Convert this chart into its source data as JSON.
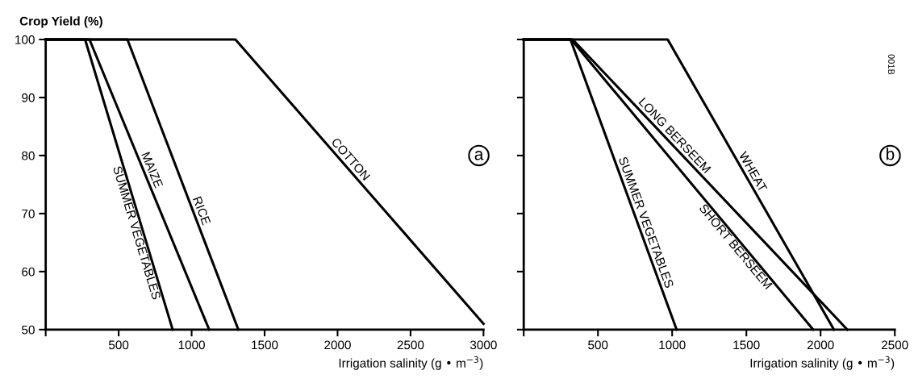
{
  "chart_data": [
    {
      "type": "line",
      "ylabel": "Crop Yield (%)",
      "xlabel": "Irrigation salinity (g • m$^{−3}$)",
      "xlim": [
        0,
        3000
      ],
      "ylim": [
        50,
        100
      ],
      "xticks": [
        {
          "value": 0,
          "label": null
        },
        500,
        1000,
        1500,
        2000,
        2500,
        3000
      ],
      "yticks": [
        50,
        60,
        70,
        80,
        90,
        100
      ],
      "grid": false,
      "marker": "none",
      "line_style": "solid",
      "series": [
        {
          "name": "SUMMER VEGETABLES",
          "color": "#000000",
          "x": [
            0,
            270,
            870
          ],
          "values": [
            100,
            100,
            50
          ]
        },
        {
          "name": "MAIZE",
          "color": "#000000",
          "x": [
            0,
            300,
            1120
          ],
          "values": [
            100,
            100,
            50
          ]
        },
        {
          "name": "RICE",
          "color": "#000000",
          "x": [
            0,
            560,
            1320
          ],
          "values": [
            100,
            100,
            50
          ]
        },
        {
          "name": "COTTON",
          "color": "#000000",
          "x": [
            0,
            1300,
            3000
          ],
          "values": [
            100,
            100,
            51
          ]
        }
      ],
      "annotations": [
        "a"
      ]
    },
    {
      "type": "line",
      "xlabel": "Irrigation salinity (g • m$^{−3}$)",
      "xlim": [
        0,
        2500
      ],
      "ylim": [
        50,
        100
      ],
      "xticks": [
        {
          "value": 0,
          "label": null
        },
        500,
        1000,
        1500,
        2000,
        2500
      ],
      "yticks": [
        50,
        60,
        70,
        80,
        90,
        100
      ],
      "tick_labels": "x",
      "grid": false,
      "marker": "none",
      "line_style": "solid",
      "series": [
        {
          "name": "SUMMER VEGETABLES",
          "color": "#000000",
          "x": [
            0,
            315,
            1030
          ],
          "values": [
            100,
            100,
            50
          ]
        },
        {
          "name": "SHORT BERSEEM",
          "color": "#000000",
          "x": [
            0,
            320,
            1950
          ],
          "values": [
            100,
            100,
            50
          ]
        },
        {
          "name": "LONG BERSEEM",
          "color": "#000000",
          "x": [
            0,
            330,
            2180
          ],
          "values": [
            100,
            100,
            50
          ]
        },
        {
          "name": "WHEAT",
          "color": "#000000",
          "x": [
            0,
            970,
            2090
          ],
          "values": [
            100,
            100,
            50
          ]
        }
      ],
      "annotations": [
        "b",
        "001B"
      ]
    }
  ]
}
